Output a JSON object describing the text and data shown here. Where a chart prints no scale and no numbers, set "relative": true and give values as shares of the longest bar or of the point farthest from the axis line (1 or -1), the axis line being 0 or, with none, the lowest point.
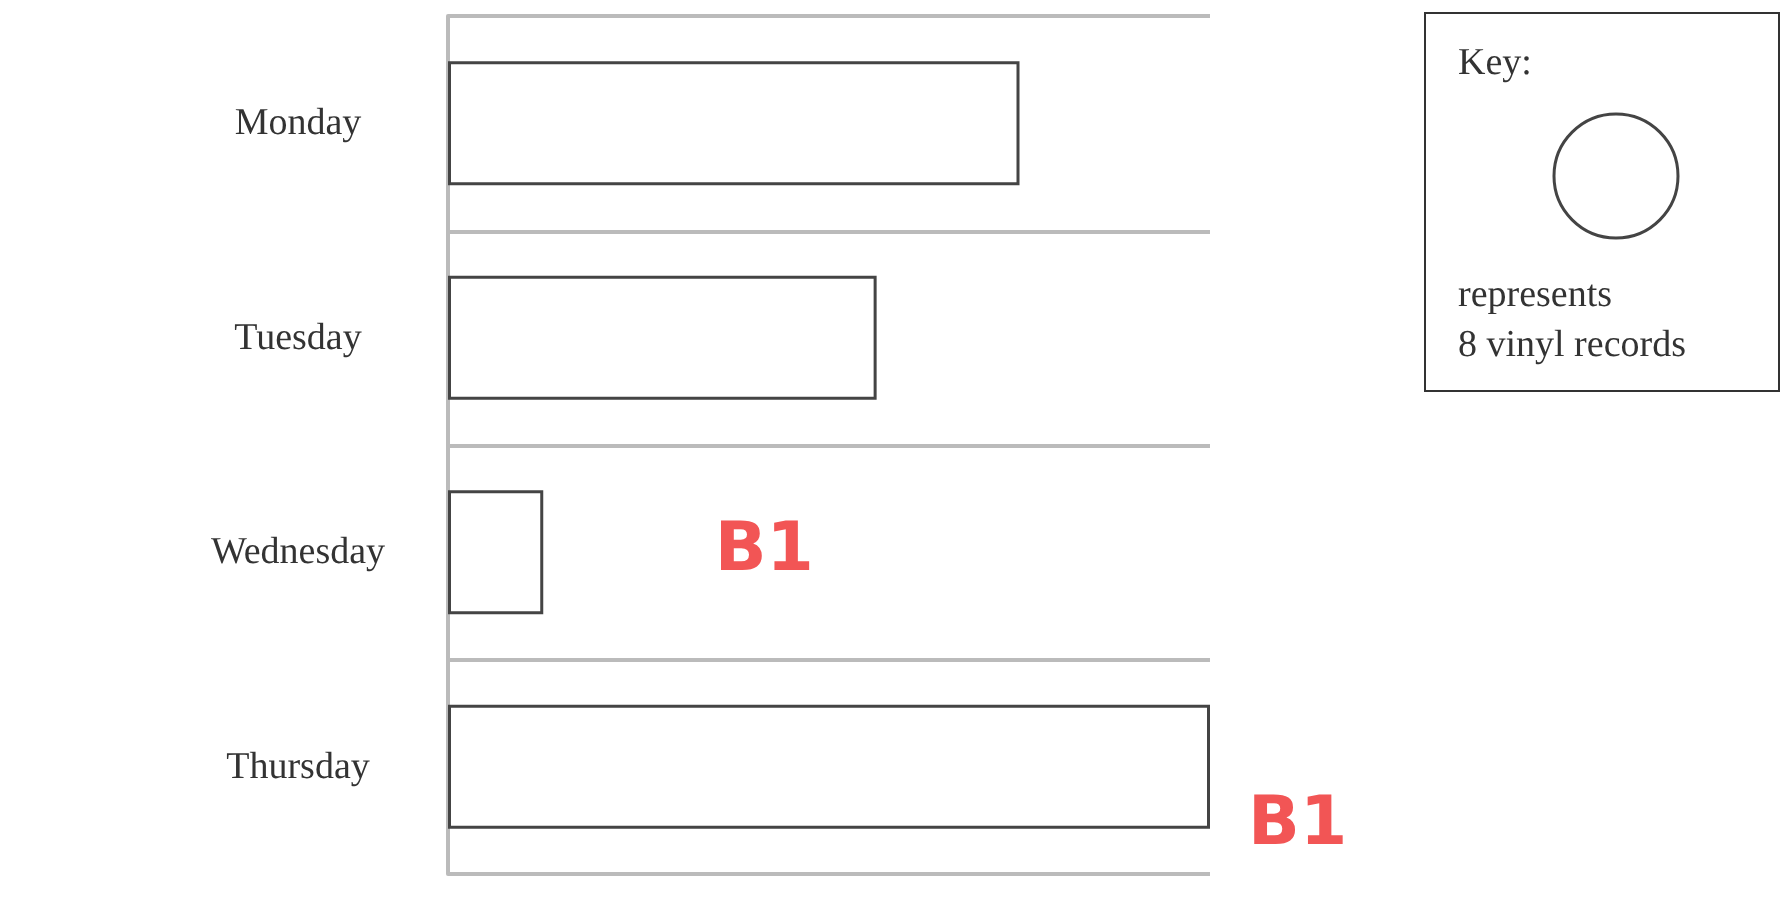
{
  "chart_data": {
    "type": "bar",
    "orientation": "horizontal",
    "relative": true,
    "grid": "y",
    "categories": [
      "Monday",
      "Tuesday",
      "Wednesday",
      "Thursday"
    ],
    "values": [
      0.75,
      0.5625,
      0.125,
      1
    ],
    "color": "#ffffff",
    "annotations": [
      "Key:",
      "represents\n8 vinyl records",
      "B1",
      "B1"
    ]
  }
}
